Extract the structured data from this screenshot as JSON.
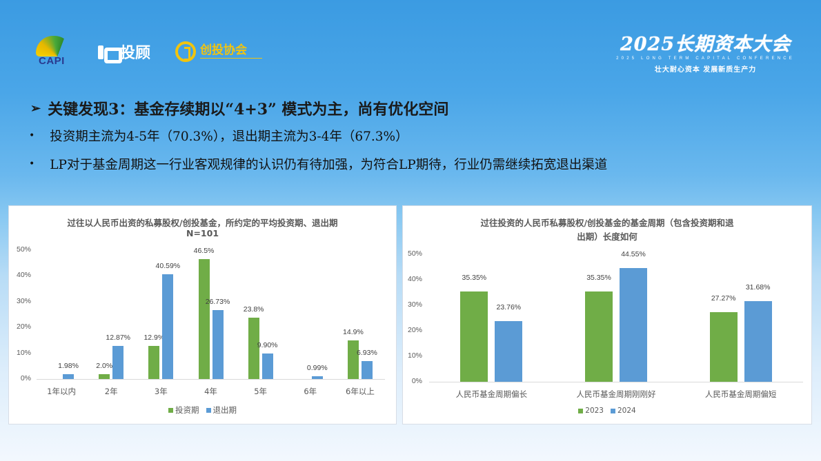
{
  "header": {
    "logos": [
      "CAPI",
      "投顾",
      "创投协会"
    ],
    "conference": {
      "title": "2025长期资本大会",
      "subtitle_en": "2025 LONG TERM CAPITAL CONFERENCE",
      "slogan": "壮大耐心资本 发展新质生产力"
    }
  },
  "content": {
    "heading": "关键发现3：基金存续期以“4+3” 模式为主，尚有优化空间",
    "bullets": [
      "投资期主流为4-5年（70.3%），退出期主流为3-4年（67.3%）",
      "LP对于基金周期这一行业客观规律的认识仍有待加强，为符合LP期待，行业仍需继续拓宽退出渠道"
    ]
  },
  "colors": {
    "green": "#70ad47",
    "blue": "#5b9bd5"
  },
  "chart_data": [
    {
      "type": "bar",
      "title": "过往以人民币出资的私募股权/创投基金，所约定的平均投资期、退出期",
      "subtitle": "N=101",
      "categories": [
        "1年以内",
        "2年",
        "3年",
        "4年",
        "5年",
        "6年",
        "6年以上"
      ],
      "series": [
        {
          "name": "投资期",
          "color": "#70ad47",
          "values": [
            0,
            2.0,
            12.9,
            46.5,
            23.8,
            0,
            14.9
          ],
          "labels": [
            "",
            "2.0%",
            "12.9%",
            "46.5%",
            "23.8%",
            "",
            "14.9%"
          ]
        },
        {
          "name": "退出期",
          "color": "#5b9bd5",
          "values": [
            1.98,
            12.87,
            40.59,
            26.73,
            9.9,
            0.99,
            6.93
          ],
          "labels": [
            "1.98%",
            "12.87%",
            "40.59%",
            "26.73%",
            "9.90%",
            "0.99%",
            "6.93%"
          ]
        }
      ],
      "yticks": [
        "0%",
        "10%",
        "20%",
        "30%",
        "40%",
        "50%"
      ],
      "ylim": [
        0,
        50
      ],
      "grid": false,
      "legend_position": "bottom"
    },
    {
      "type": "bar",
      "title_line1": "过往投资的人民币私募股权/创投基金的基金周期（包含投资期和退",
      "title_line2": "出期）长度如何",
      "categories": [
        "人民币基金周期偏长",
        "人民币基金周期刚刚好",
        "人民币基金周期偏短"
      ],
      "series": [
        {
          "name": "2023",
          "color": "#70ad47",
          "values": [
            35.35,
            35.35,
            27.27
          ],
          "labels": [
            "35.35%",
            "35.35%",
            "27.27%"
          ]
        },
        {
          "name": "2024",
          "color": "#5b9bd5",
          "values": [
            23.76,
            44.55,
            31.68
          ],
          "labels": [
            "23.76%",
            "44.55%",
            "31.68%"
          ]
        }
      ],
      "yticks": [
        "0%",
        "10%",
        "20%",
        "30%",
        "40%",
        "50%"
      ],
      "ylim": [
        0,
        50
      ],
      "grid": false,
      "legend_position": "bottom"
    }
  ]
}
